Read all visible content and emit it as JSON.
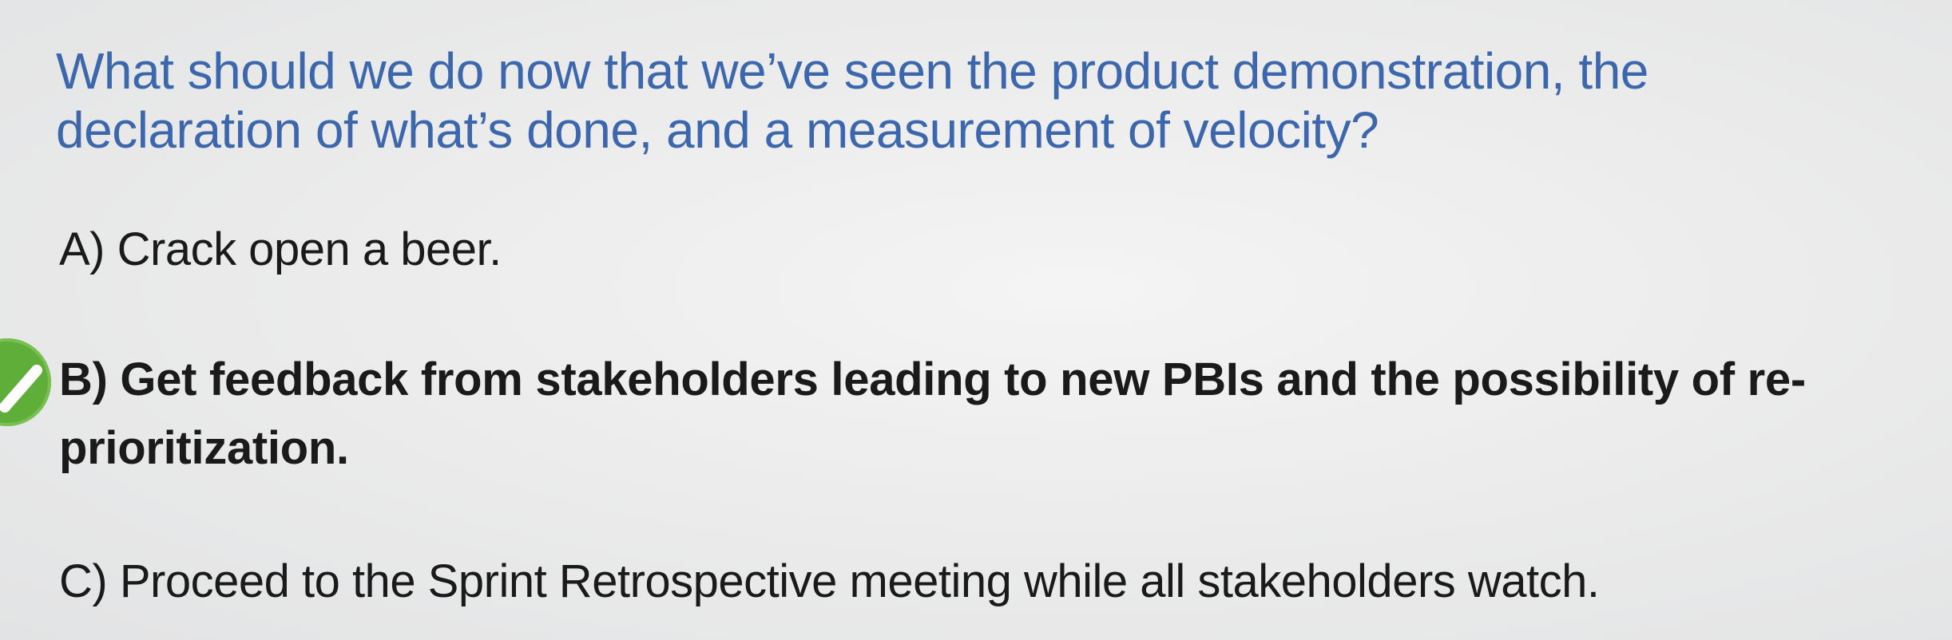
{
  "question": {
    "text": "What should we do now that we’ve seen the product demonstration, the declaration of what’s done, and a measurement of velocity?"
  },
  "options": [
    {
      "label": "A) Crack open a beer.",
      "correct": false
    },
    {
      "label": "B) Get feedback from stakeholders leading to new PBIs and the possibility of re-prioritization.",
      "correct": true
    },
    {
      "label": "C) Proceed to the Sprint Retrospective meeting while all stakeholders watch.",
      "correct": false
    }
  ],
  "correct_marker": {
    "icon": "checkmark-icon",
    "color": "#5fae3a"
  },
  "colors": {
    "question": "#3d67ad",
    "option_text": "#1a1a1a",
    "background": "#ececec"
  }
}
